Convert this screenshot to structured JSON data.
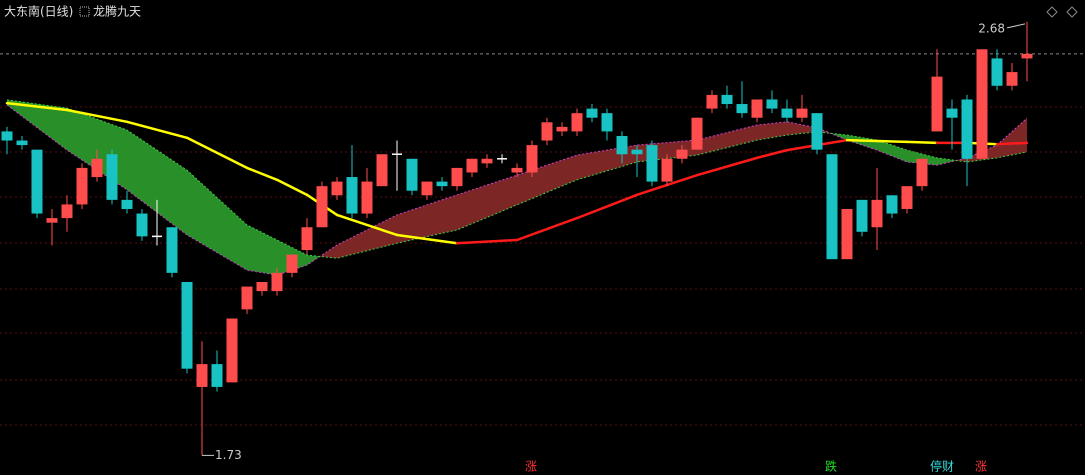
{
  "chart_data": {
    "type": "candlestick",
    "title": "大东南(日线)",
    "indicator_name": "龙腾九天",
    "ylim": [
      1.687,
      2.728
    ],
    "up_color": "#ff4d4d",
    "down_color": "#19c3c3",
    "flat_color": "#ffffff",
    "candles": {
      "open": [
        2.44,
        2.42,
        2.4,
        2.24,
        2.25,
        2.28,
        2.34,
        2.39,
        2.29,
        2.26,
        2.21,
        2.23,
        2.11,
        1.88,
        1.93,
        1.89,
        2.05,
        2.09,
        2.09,
        2.13,
        2.18,
        2.23,
        2.3,
        2.34,
        2.26,
        2.32,
        2.39,
        2.38,
        2.3,
        2.33,
        2.32,
        2.35,
        2.37,
        2.38,
        2.35,
        2.35,
        2.42,
        2.44,
        2.44,
        2.49,
        2.48,
        2.43,
        2.4,
        2.41,
        2.33,
        2.38,
        2.4,
        2.49,
        2.52,
        2.5,
        2.47,
        2.51,
        2.49,
        2.47,
        2.48,
        2.39,
        2.16,
        2.29,
        2.23,
        2.3,
        2.27,
        2.32,
        2.44,
        2.49,
        2.51,
        2.38,
        2.6,
        2.54,
        2.6
      ],
      "high": [
        2.45,
        2.43,
        2.4,
        2.27,
        2.3,
        2.37,
        2.4,
        2.4,
        2.31,
        2.27,
        2.29,
        2.23,
        2.11,
        1.98,
        1.96,
        2.03,
        2.1,
        2.11,
        2.14,
        2.17,
        2.25,
        2.33,
        2.34,
        2.41,
        2.36,
        2.39,
        2.42,
        2.38,
        2.33,
        2.34,
        2.36,
        2.38,
        2.39,
        2.39,
        2.37,
        2.42,
        2.47,
        2.46,
        2.49,
        2.5,
        2.49,
        2.44,
        2.41,
        2.42,
        2.39,
        2.41,
        2.47,
        2.53,
        2.54,
        2.55,
        2.51,
        2.53,
        2.51,
        2.52,
        2.48,
        2.39,
        2.27,
        2.29,
        2.36,
        2.3,
        2.32,
        2.38,
        2.62,
        2.51,
        2.52,
        2.62,
        2.62,
        2.59,
        2.68
      ],
      "low": [
        2.39,
        2.4,
        2.25,
        2.19,
        2.22,
        2.27,
        2.33,
        2.28,
        2.26,
        2.2,
        2.19,
        2.12,
        1.91,
        1.73,
        1.87,
        1.89,
        2.04,
        2.08,
        2.08,
        2.12,
        2.17,
        2.23,
        2.29,
        2.25,
        2.25,
        2.32,
        2.31,
        2.3,
        2.29,
        2.31,
        2.31,
        2.34,
        2.36,
        2.37,
        2.34,
        2.34,
        2.41,
        2.43,
        2.43,
        2.46,
        2.42,
        2.37,
        2.34,
        2.32,
        2.32,
        2.37,
        2.4,
        2.48,
        2.49,
        2.47,
        2.46,
        2.48,
        2.46,
        2.46,
        2.39,
        2.16,
        2.16,
        2.21,
        2.18,
        2.25,
        2.26,
        2.31,
        2.44,
        2.4,
        2.32,
        2.38,
        2.53,
        2.53,
        2.55
      ],
      "close": [
        2.42,
        2.41,
        2.26,
        2.25,
        2.28,
        2.36,
        2.38,
        2.29,
        2.27,
        2.21,
        2.21,
        2.13,
        1.92,
        1.93,
        1.88,
        2.03,
        2.1,
        2.11,
        2.13,
        2.17,
        2.23,
        2.32,
        2.33,
        2.26,
        2.33,
        2.39,
        2.39,
        2.31,
        2.33,
        2.32,
        2.36,
        2.38,
        2.38,
        2.38,
        2.36,
        2.41,
        2.46,
        2.45,
        2.48,
        2.47,
        2.44,
        2.39,
        2.39,
        2.33,
        2.38,
        2.4,
        2.47,
        2.52,
        2.5,
        2.48,
        2.51,
        2.49,
        2.47,
        2.49,
        2.4,
        2.16,
        2.27,
        2.22,
        2.29,
        2.26,
        2.32,
        2.38,
        2.56,
        2.47,
        2.38,
        2.62,
        2.54,
        2.57,
        2.61
      ]
    },
    "indicator": {
      "index": [
        0,
        4,
        8,
        12,
        16,
        18,
        20,
        22,
        26,
        30,
        34,
        38,
        42,
        46,
        50,
        52,
        54,
        56,
        58,
        60,
        62,
        64,
        66,
        68
      ],
      "ma": [
        2.502,
        2.487,
        2.461,
        2.426,
        2.36,
        2.334,
        2.301,
        2.257,
        2.213,
        2.195,
        2.202,
        2.25,
        2.301,
        2.344,
        2.382,
        2.399,
        2.41,
        2.421,
        2.419,
        2.417,
        2.415,
        2.415,
        2.412,
        2.415
      ],
      "fast": [
        2.498,
        2.399,
        2.312,
        2.213,
        2.136,
        2.125,
        2.147,
        2.191,
        2.257,
        2.301,
        2.344,
        2.388,
        2.41,
        2.421,
        2.454,
        2.461,
        2.448,
        2.421,
        2.399,
        2.373,
        2.366,
        2.382,
        2.41,
        2.469
      ],
      "slow": [
        2.509,
        2.491,
        2.443,
        2.355,
        2.235,
        2.202,
        2.169,
        2.162,
        2.195,
        2.224,
        2.279,
        2.334,
        2.373,
        2.388,
        2.421,
        2.432,
        2.439,
        2.432,
        2.421,
        2.399,
        2.382,
        2.373,
        2.382,
        2.395
      ],
      "ma_rise_color": "#ff1a1a",
      "ma_fall_color": "#ffff00",
      "band_rise_color": "#8a2a2a",
      "band_fall_color": "#2e9e2e"
    },
    "signals": [
      null,
      null,
      null,
      null,
      null,
      null,
      null,
      null,
      null,
      null,
      null,
      null,
      null,
      null,
      null,
      null,
      null,
      null,
      null,
      null,
      null,
      null,
      null,
      null,
      null,
      null,
      null,
      null,
      null,
      null,
      null,
      null,
      null,
      null,
      null,
      {
        "text": "涨",
        "color": "#ff3333"
      },
      null,
      null,
      null,
      null,
      null,
      null,
      null,
      null,
      null,
      null,
      null,
      null,
      null,
      null,
      null,
      null,
      null,
      null,
      null,
      {
        "text": "跌",
        "color": "#22dd22"
      },
      null,
      null,
      null,
      null,
      null,
      null,
      {
        "text": "停财",
        "color": "#33dddd"
      },
      null,
      null,
      {
        "text": "涨",
        "color": "#ff3333"
      },
      null,
      null,
      null
    ]
  }
}
